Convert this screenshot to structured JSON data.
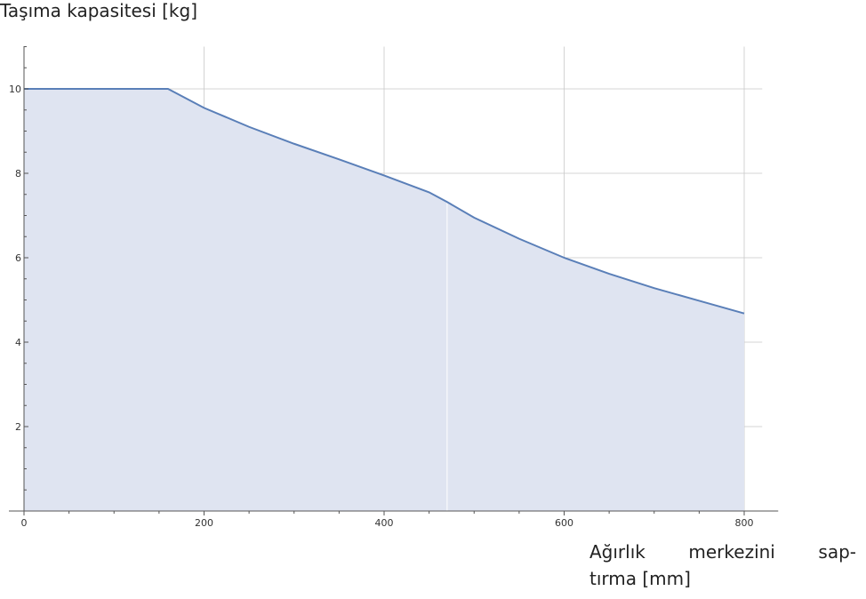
{
  "chart_data": {
    "type": "area",
    "title": "",
    "ylabel": "Taşıma kapasitesi [kg]",
    "xlabel_words": [
      "Ağırlık",
      "merkezini",
      "sap-"
    ],
    "xlabel_line2": "tırma [mm]",
    "xlim": [
      0,
      820
    ],
    "ylim": [
      0,
      11
    ],
    "x_ticks": [
      0,
      200,
      400,
      600,
      800
    ],
    "y_ticks": [
      2,
      4,
      6,
      8,
      10
    ],
    "grid": true,
    "series": [
      {
        "x": [
          0,
          160,
          200,
          250,
          300,
          350,
          400,
          450,
          470,
          500,
          550,
          600,
          650,
          700,
          750,
          800
        ],
        "y": [
          10,
          10,
          9.55,
          9.1,
          8.7,
          8.33,
          7.95,
          7.55,
          7.32,
          6.95,
          6.45,
          6.0,
          5.62,
          5.28,
          4.98,
          4.68
        ]
      }
    ],
    "colors": {
      "line": "#5a7fb8",
      "fill": "#dfe4f1",
      "grid": "#c8c8c8",
      "axis": "#555555"
    }
  }
}
